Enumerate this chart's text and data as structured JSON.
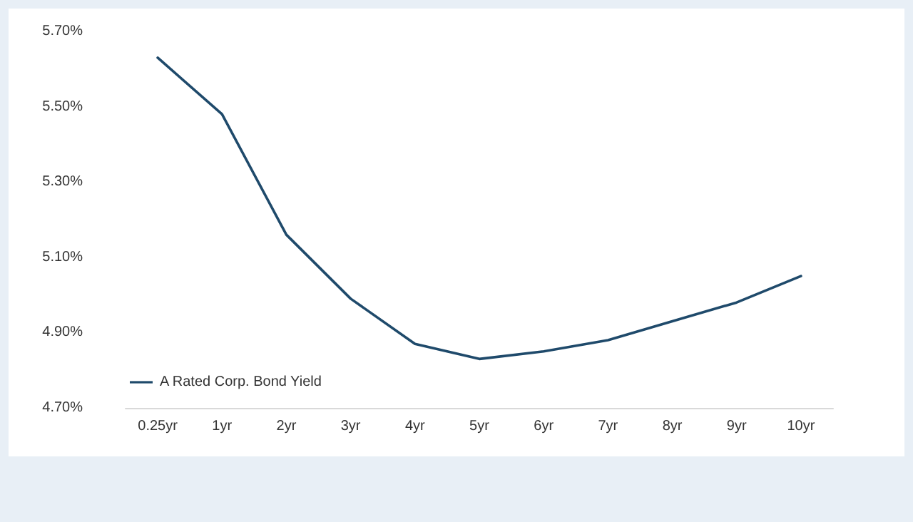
{
  "chart_data": {
    "type": "line",
    "categories": [
      "0.25yr",
      "1yr",
      "2yr",
      "3yr",
      "4yr",
      "5yr",
      "6yr",
      "7yr",
      "8yr",
      "9yr",
      "10yr"
    ],
    "series": [
      {
        "name": "A Rated Corp. Bond Yield",
        "color": "#1f4a6b",
        "values": [
          5.63,
          5.48,
          5.16,
          4.99,
          4.87,
          4.83,
          4.85,
          4.88,
          4.93,
          4.98,
          5.05
        ]
      }
    ],
    "ylim": [
      4.7,
      5.7
    ],
    "yticks": [
      {
        "value": 4.7,
        "label": "4.70%"
      },
      {
        "value": 4.9,
        "label": "4.90%"
      },
      {
        "value": 5.1,
        "label": "5.10%"
      },
      {
        "value": 5.3,
        "label": "5.30%"
      },
      {
        "value": 5.5,
        "label": "5.50%"
      },
      {
        "value": 5.7,
        "label": "5.70%"
      }
    ],
    "grid": false,
    "legend": "bottom left",
    "marker": "none",
    "line_style": "solid"
  }
}
